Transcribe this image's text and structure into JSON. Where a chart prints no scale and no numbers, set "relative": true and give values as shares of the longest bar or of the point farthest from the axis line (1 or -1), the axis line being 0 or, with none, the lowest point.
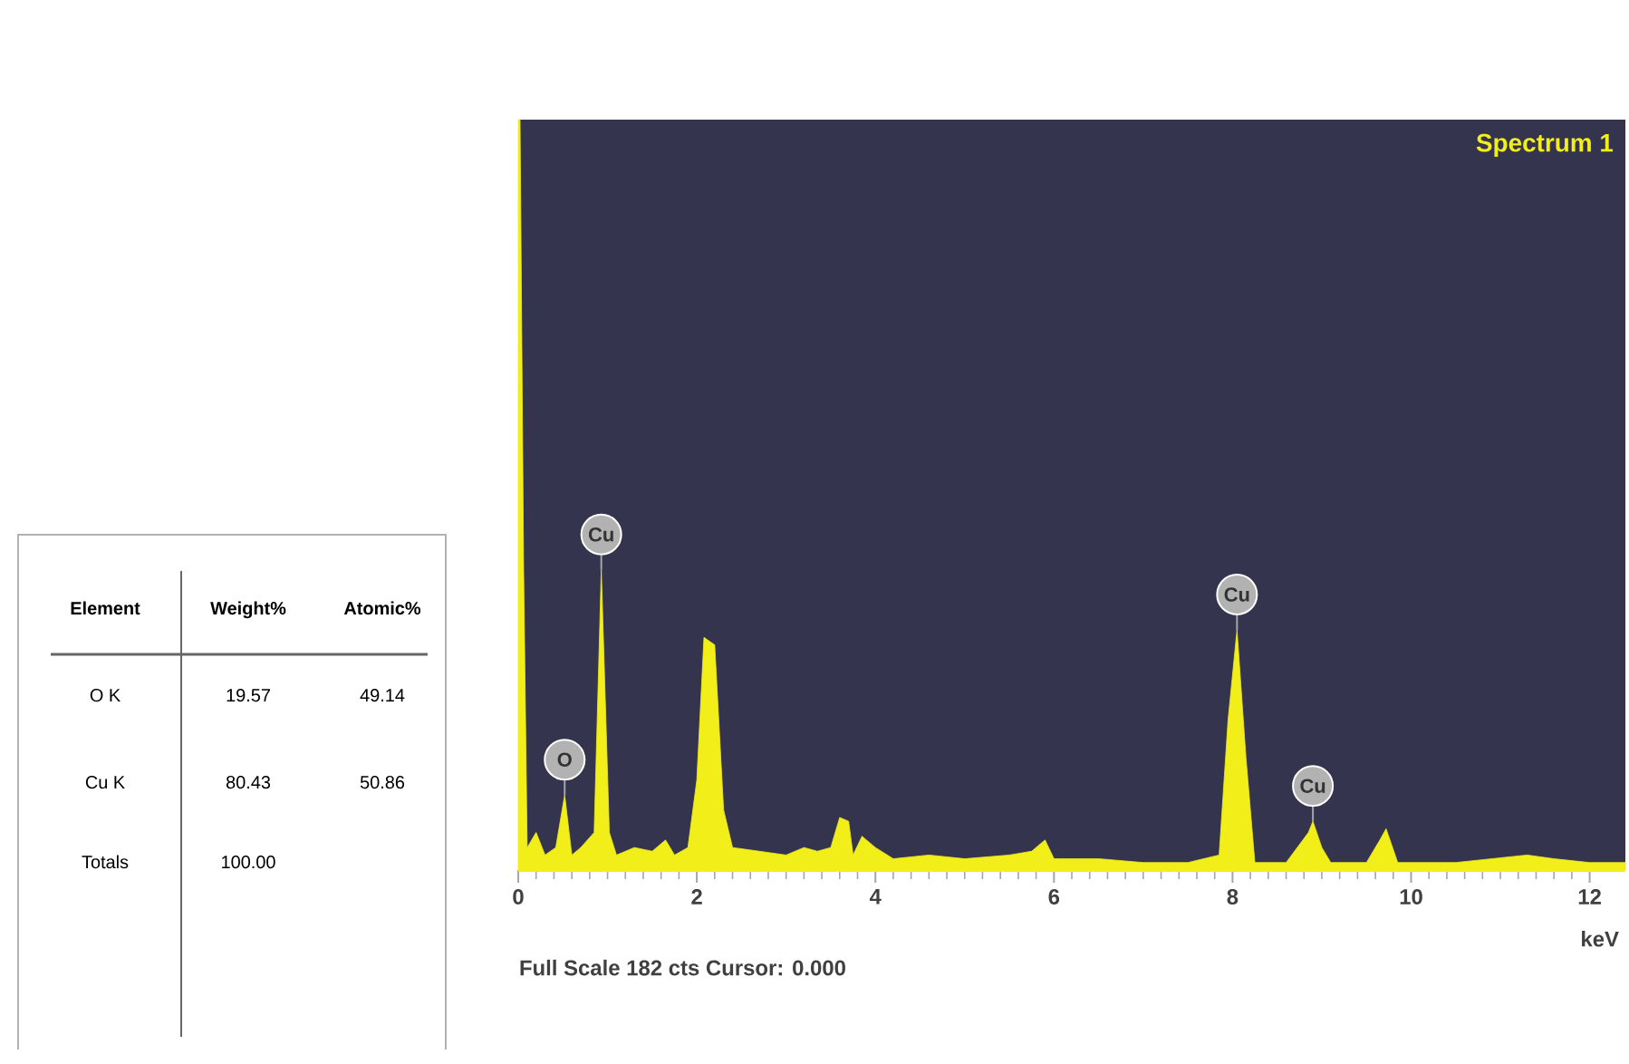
{
  "chart_data": [
    {
      "type": "other",
      "annotations": [
        "Element",
        "Weight%",
        "Atomic%",
        "O K",
        "19.57",
        "49.14",
        "Cu K",
        "80.43",
        "50.86",
        "Totals",
        "100.00"
      ]
    },
    {
      "type": "area",
      "title": "Spectrum 1",
      "xlabel": "keV",
      "relative": true,
      "color": "#f2ee1a",
      "xlim": [
        0,
        12.4
      ],
      "xticks": [
        0,
        2,
        4,
        6,
        8,
        10,
        12
      ],
      "x": [
        0,
        0.02,
        0.06,
        0.1,
        0.2,
        0.3,
        0.42,
        0.52,
        0.6,
        0.7,
        0.85,
        0.93,
        1.02,
        1.1,
        1.3,
        1.5,
        1.65,
        1.75,
        1.9,
        2.0,
        2.08,
        2.2,
        2.3,
        2.4,
        2.7,
        3.0,
        3.2,
        3.35,
        3.5,
        3.6,
        3.7,
        3.75,
        3.85,
        4.0,
        4.2,
        4.6,
        5.0,
        5.5,
        5.75,
        5.9,
        6.0,
        6.5,
        7.0,
        7.5,
        7.85,
        7.95,
        8.05,
        8.15,
        8.25,
        8.6,
        8.85,
        8.9,
        9.0,
        9.1,
        9.5,
        9.65,
        9.72,
        9.85,
        10.5,
        11.3,
        11.6,
        12.0,
        12.4
      ],
      "values": [
        1.0,
        1.0,
        0.4,
        0.03,
        0.05,
        0.02,
        0.03,
        0.1,
        0.02,
        0.03,
        0.05,
        0.4,
        0.05,
        0.02,
        0.03,
        0.025,
        0.04,
        0.02,
        0.03,
        0.12,
        0.31,
        0.3,
        0.08,
        0.03,
        0.025,
        0.02,
        0.03,
        0.025,
        0.03,
        0.07,
        0.065,
        0.02,
        0.045,
        0.03,
        0.015,
        0.02,
        0.015,
        0.02,
        0.025,
        0.04,
        0.015,
        0.015,
        0.01,
        0.01,
        0.02,
        0.2,
        0.32,
        0.15,
        0.01,
        0.01,
        0.05,
        0.065,
        0.03,
        0.01,
        0.01,
        0.04,
        0.055,
        0.01,
        0.01,
        0.02,
        0.015,
        0.01,
        0.01
      ],
      "annotations": [
        "Full Scale 182 cts Cursor: 0.000",
        {
          "text": "O",
          "x": 0.52,
          "y": 0.1
        },
        {
          "text": "Cu",
          "x": 0.93,
          "y": 0.4
        },
        {
          "text": "Cu",
          "x": 8.05,
          "y": 0.32
        },
        {
          "text": "Cu",
          "x": 8.9,
          "y": 0.065
        }
      ]
    }
  ]
}
